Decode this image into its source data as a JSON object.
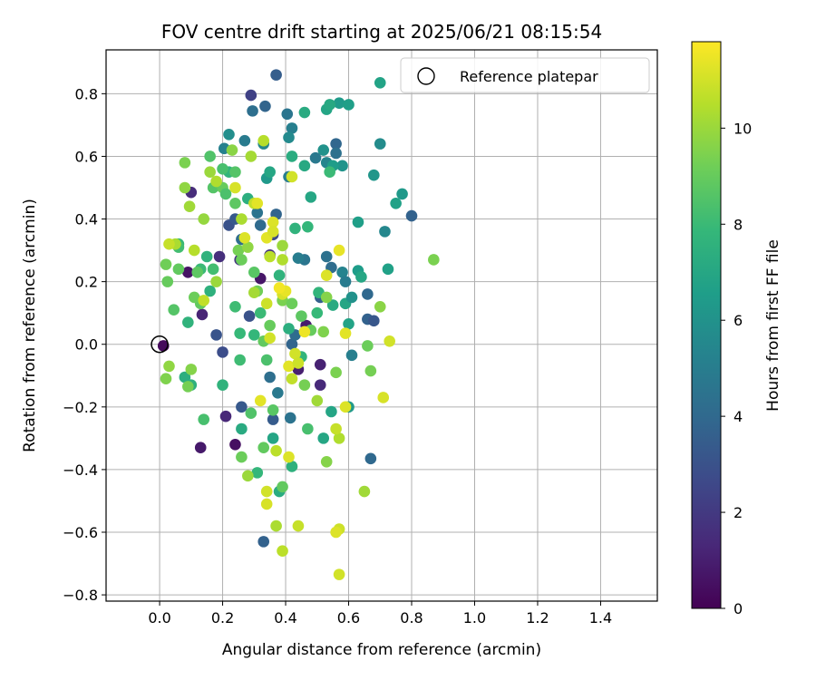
{
  "chart_data": {
    "type": "scatter",
    "title": "FOV centre drift starting at 2025/06/21 08:15:54",
    "xlabel": "Angular distance from reference (arcmin)",
    "ylabel": "Rotation from reference (arcmin)",
    "xlim": [
      -0.17,
      1.58
    ],
    "ylim": [
      -0.82,
      0.94
    ],
    "x_ticks": [
      0.0,
      0.2,
      0.4,
      0.6,
      0.8,
      1.0,
      1.2,
      1.4
    ],
    "x_tick_labels": [
      "0.0",
      "0.2",
      "0.4",
      "0.6",
      "0.8",
      "1.0",
      "1.2",
      "1.4"
    ],
    "y_ticks": [
      -0.8,
      -0.6,
      -0.4,
      -0.2,
      0.0,
      0.2,
      0.4,
      0.6,
      0.8
    ],
    "y_tick_labels": [
      "−0.8",
      "−0.6",
      "−0.4",
      "−0.2",
      "0.0",
      "0.2",
      "0.4",
      "0.6",
      "0.8"
    ],
    "grid": true,
    "legend_position": "top-right",
    "legend": [
      {
        "label": "Reference platepar",
        "marker": "open-circle"
      }
    ],
    "reference_point": {
      "x": 0.0,
      "y": 0.0
    },
    "colorbar": {
      "label": "Hours from first FF file",
      "colormap": "viridis",
      "range": [
        0,
        11.8
      ],
      "ticks": [
        0,
        2,
        4,
        6,
        8,
        10
      ],
      "tick_labels": [
        "0",
        "2",
        "4",
        "6",
        "8",
        "10"
      ]
    },
    "viridis_stops": [
      "#440154",
      "#482878",
      "#3e4989",
      "#31688e",
      "#26828e",
      "#1f9e89",
      "#35b779",
      "#6ece58",
      "#b5de2b",
      "#fde725"
    ],
    "points": [
      [
        0.012,
        -0.005,
        0.3
      ],
      [
        0.09,
        0.23,
        0.6
      ],
      [
        0.135,
        0.095,
        1.2
      ],
      [
        0.21,
        -0.23,
        1.3
      ],
      [
        0.13,
        -0.33,
        0.8
      ],
      [
        0.24,
        -0.32,
        0.5
      ],
      [
        0.51,
        -0.065,
        1.1
      ],
      [
        0.51,
        -0.13,
        1.4
      ],
      [
        0.465,
        0.06,
        0.9
      ],
      [
        0.32,
        0.21,
        0.7
      ],
      [
        0.19,
        0.28,
        1.6
      ],
      [
        0.1,
        0.485,
        1.5
      ],
      [
        0.29,
        0.795,
        2.3
      ],
      [
        0.255,
        0.27,
        1.9
      ],
      [
        0.44,
        -0.08,
        1.0
      ],
      [
        0.35,
        0.285,
        1.8
      ],
      [
        0.37,
        0.86,
        3.5
      ],
      [
        0.295,
        0.745,
        4.3
      ],
      [
        0.335,
        0.76,
        3.8
      ],
      [
        0.405,
        0.735,
        4.6
      ],
      [
        0.42,
        0.69,
        5.1
      ],
      [
        0.41,
        0.66,
        5.6
      ],
      [
        0.22,
        0.67,
        5.8
      ],
      [
        0.27,
        0.65,
        4.9
      ],
      [
        0.33,
        0.64,
        5.5
      ],
      [
        0.205,
        0.625,
        5.2
      ],
      [
        0.56,
        0.64,
        3.9
      ],
      [
        0.56,
        0.61,
        4.4
      ],
      [
        0.52,
        0.62,
        6.0
      ],
      [
        0.53,
        0.58,
        5.4
      ],
      [
        0.58,
        0.57,
        6.1
      ],
      [
        0.55,
        0.57,
        6.5
      ],
      [
        0.495,
        0.595,
        4.8
      ],
      [
        0.41,
        0.535,
        5.0
      ],
      [
        0.34,
        0.53,
        6.3
      ],
      [
        0.31,
        0.42,
        4.5
      ],
      [
        0.37,
        0.415,
        3.8
      ],
      [
        0.22,
        0.38,
        3.0
      ],
      [
        0.24,
        0.4,
        3.3
      ],
      [
        0.32,
        0.38,
        4.1
      ],
      [
        0.36,
        0.35,
        2.7
      ],
      [
        0.26,
        0.335,
        4.2
      ],
      [
        0.53,
        0.28,
        4.4
      ],
      [
        0.46,
        0.27,
        4.6
      ],
      [
        0.545,
        0.245,
        4.2
      ],
      [
        0.58,
        0.23,
        5.3
      ],
      [
        0.44,
        0.275,
        5.0
      ],
      [
        0.59,
        0.2,
        4.9
      ],
      [
        0.66,
        0.16,
        4.0
      ],
      [
        0.51,
        0.15,
        3.6
      ],
      [
        0.8,
        0.41,
        3.7
      ],
      [
        0.715,
        0.36,
        5.5
      ],
      [
        0.66,
        0.08,
        3.7
      ],
      [
        0.68,
        0.075,
        3.2
      ],
      [
        0.61,
        -0.035,
        5.1
      ],
      [
        0.42,
        0.0,
        3.8
      ],
      [
        0.43,
        0.03,
        4.2
      ],
      [
        0.35,
        -0.105,
        4.3
      ],
      [
        0.375,
        -0.155,
        4.8
      ],
      [
        0.415,
        -0.235,
        4.5
      ],
      [
        0.36,
        -0.24,
        3.4
      ],
      [
        0.67,
        -0.365,
        4.0
      ],
      [
        0.33,
        -0.63,
        3.7
      ],
      [
        0.2,
        -0.025,
        2.8
      ],
      [
        0.18,
        0.03,
        3.1
      ],
      [
        0.26,
        -0.2,
        3.3
      ],
      [
        0.285,
        0.09,
        3.0
      ],
      [
        0.75,
        0.45,
        6.7
      ],
      [
        0.77,
        0.48,
        6.3
      ],
      [
        0.7,
        0.64,
        5.7
      ],
      [
        0.68,
        0.54,
        6.2
      ],
      [
        0.57,
        0.77,
        6.4
      ],
      [
        0.53,
        0.75,
        6.9
      ],
      [
        0.54,
        0.765,
        7.1
      ],
      [
        0.7,
        0.835,
        6.8
      ],
      [
        0.6,
        0.765,
        6.6
      ],
      [
        0.46,
        0.74,
        7.2
      ],
      [
        0.63,
        0.39,
        6.6
      ],
      [
        0.63,
        0.235,
        6.5
      ],
      [
        0.64,
        0.215,
        7.0
      ],
      [
        0.725,
        0.24,
        6.7
      ],
      [
        0.59,
        0.13,
        6.9
      ],
      [
        0.55,
        0.125,
        7.2
      ],
      [
        0.61,
        0.15,
        6.0
      ],
      [
        0.6,
        0.065,
        6.8
      ],
      [
        0.545,
        -0.215,
        6.9
      ],
      [
        0.6,
        -0.2,
        6.3
      ],
      [
        0.52,
        -0.3,
        7.0
      ],
      [
        0.36,
        -0.3,
        6.9
      ],
      [
        0.38,
        -0.47,
        7.3
      ],
      [
        0.42,
        -0.39,
        7.5
      ],
      [
        0.31,
        -0.41,
        7.8
      ],
      [
        0.26,
        -0.27,
        7.2
      ],
      [
        0.2,
        -0.13,
        7.6
      ],
      [
        0.1,
        -0.13,
        7.5
      ],
      [
        0.08,
        -0.105,
        7.4
      ],
      [
        0.09,
        0.07,
        7.6
      ],
      [
        0.06,
        0.32,
        7.9
      ],
      [
        0.22,
        0.55,
        7.7
      ],
      [
        0.28,
        0.465,
        7.4
      ],
      [
        0.35,
        0.55,
        7.0
      ],
      [
        0.43,
        0.37,
        7.6
      ],
      [
        0.47,
        0.375,
        7.8
      ],
      [
        0.46,
        0.57,
        7.1
      ],
      [
        0.48,
        0.47,
        7.0
      ],
      [
        0.38,
        0.22,
        7.6
      ],
      [
        0.32,
        0.1,
        8.0
      ],
      [
        0.255,
        0.035,
        7.9
      ],
      [
        0.16,
        0.17,
        7.5
      ],
      [
        0.13,
        0.24,
        8.0
      ],
      [
        0.15,
        0.28,
        7.6
      ],
      [
        0.17,
        0.24,
        8.2
      ],
      [
        0.24,
        0.12,
        8.1
      ],
      [
        0.3,
        0.03,
        7.8
      ],
      [
        0.34,
        -0.05,
        8.4
      ],
      [
        0.42,
        0.6,
        7.3
      ],
      [
        0.54,
        0.55,
        8.0
      ],
      [
        0.505,
        0.165,
        7.7
      ],
      [
        0.41,
        0.05,
        7.4
      ],
      [
        0.5,
        0.1,
        7.9
      ],
      [
        0.47,
        -0.27,
        8.3
      ],
      [
        0.29,
        -0.22,
        8.5
      ],
      [
        0.36,
        -0.21,
        8.7
      ],
      [
        0.45,
        -0.04,
        7.7
      ],
      [
        0.255,
        -0.05,
        8.1
      ],
      [
        0.14,
        -0.24,
        8.3
      ],
      [
        0.13,
        0.13,
        8.9
      ],
      [
        0.17,
        0.5,
        8.6
      ],
      [
        0.2,
        0.5,
        9.0
      ],
      [
        0.21,
        0.48,
        8.4
      ],
      [
        0.24,
        0.45,
        8.8
      ],
      [
        0.2,
        0.56,
        8.3
      ],
      [
        0.24,
        0.55,
        8.6
      ],
      [
        0.16,
        0.6,
        8.5
      ],
      [
        0.06,
        0.31,
        8.2
      ],
      [
        0.12,
        0.23,
        8.8
      ],
      [
        0.11,
        0.15,
        9.1
      ],
      [
        0.06,
        0.24,
        8.9
      ],
      [
        0.025,
        0.2,
        9.0
      ],
      [
        0.02,
        0.255,
        9.2
      ],
      [
        0.045,
        0.11,
        8.6
      ],
      [
        0.25,
        0.3,
        9.3
      ],
      [
        0.26,
        0.27,
        9.1
      ],
      [
        0.3,
        0.23,
        8.7
      ],
      [
        0.31,
        0.17,
        9.2
      ],
      [
        0.33,
        0.01,
        8.9
      ],
      [
        0.35,
        0.06,
        9.0
      ],
      [
        0.39,
        0.14,
        9.4
      ],
      [
        0.42,
        0.13,
        9.1
      ],
      [
        0.45,
        0.09,
        8.8
      ],
      [
        0.48,
        0.045,
        9.0
      ],
      [
        0.52,
        0.04,
        9.5
      ],
      [
        0.53,
        0.15,
        9.6
      ],
      [
        0.66,
        -0.005,
        9.1
      ],
      [
        0.67,
        -0.085,
        9.3
      ],
      [
        0.7,
        0.12,
        9.7
      ],
      [
        0.87,
        0.27,
        9.4
      ],
      [
        0.56,
        -0.09,
        9.4
      ],
      [
        0.46,
        -0.13,
        9.3
      ],
      [
        0.33,
        -0.33,
        8.9
      ],
      [
        0.26,
        -0.36,
        9.1
      ],
      [
        0.39,
        -0.455,
        8.9
      ],
      [
        0.53,
        -0.375,
        9.6
      ],
      [
        0.65,
        -0.47,
        10.1
      ],
      [
        0.09,
        -0.135,
        9.3
      ],
      [
        0.1,
        -0.08,
        9.6
      ],
      [
        0.03,
        -0.07,
        9.8
      ],
      [
        0.02,
        -0.11,
        9.5
      ],
      [
        0.08,
        0.5,
        9.8
      ],
      [
        0.095,
        0.44,
        10.1
      ],
      [
        0.08,
        0.58,
        9.4
      ],
      [
        0.16,
        0.55,
        10.0
      ],
      [
        0.14,
        0.4,
        9.9
      ],
      [
        0.23,
        0.62,
        9.7
      ],
      [
        0.29,
        0.6,
        10.2
      ],
      [
        0.33,
        0.65,
        10.5
      ],
      [
        0.18,
        0.52,
        10.4
      ],
      [
        0.3,
        0.45,
        10.7
      ],
      [
        0.39,
        0.315,
        10.0
      ],
      [
        0.28,
        0.31,
        9.8
      ],
      [
        0.26,
        0.4,
        10.3
      ],
      [
        0.35,
        0.28,
        10.6
      ],
      [
        0.39,
        0.27,
        10.4
      ],
      [
        0.18,
        0.2,
        10.0
      ],
      [
        0.05,
        0.32,
        10.3
      ],
      [
        0.03,
        0.32,
        10.8
      ],
      [
        0.11,
        0.3,
        10.5
      ],
      [
        0.14,
        0.14,
        10.7
      ],
      [
        0.3,
        0.165,
        10.2
      ],
      [
        0.34,
        0.13,
        10.9
      ],
      [
        0.36,
        0.39,
        11.2
      ],
      [
        0.5,
        -0.18,
        10.1
      ],
      [
        0.37,
        -0.34,
        10.6
      ],
      [
        0.57,
        -0.3,
        10.4
      ],
      [
        0.28,
        -0.42,
        10.0
      ],
      [
        0.44,
        -0.58,
        10.8
      ],
      [
        0.37,
        -0.58,
        10.3
      ],
      [
        0.57,
        -0.59,
        10.9
      ],
      [
        0.56,
        -0.6,
        11.2
      ],
      [
        0.39,
        -0.66,
        10.6
      ],
      [
        0.57,
        -0.735,
        11.0
      ],
      [
        0.59,
        -0.2,
        11.2
      ],
      [
        0.71,
        -0.17,
        11.1
      ],
      [
        0.56,
        -0.27,
        10.8
      ],
      [
        0.41,
        -0.07,
        11.3
      ],
      [
        0.43,
        -0.03,
        11.0
      ],
      [
        0.44,
        -0.06,
        10.9
      ],
      [
        0.59,
        0.035,
        11.3
      ],
      [
        0.42,
        -0.11,
        10.7
      ],
      [
        0.34,
        -0.47,
        11.0
      ],
      [
        0.34,
        -0.51,
        11.1
      ],
      [
        0.41,
        -0.36,
        11.2
      ],
      [
        0.35,
        0.02,
        11.0
      ],
      [
        0.34,
        0.34,
        11.3
      ],
      [
        0.36,
        0.36,
        11.1
      ],
      [
        0.39,
        0.16,
        11.1
      ],
      [
        0.4,
        0.17,
        11.4
      ],
      [
        0.57,
        0.3,
        11.4
      ],
      [
        0.73,
        0.01,
        11.0
      ],
      [
        0.31,
        0.45,
        11.3
      ],
      [
        0.53,
        0.22,
        11.2
      ],
      [
        0.42,
        0.535,
        11.0
      ],
      [
        0.24,
        0.5,
        11.1
      ],
      [
        0.38,
        0.18,
        11.6
      ],
      [
        0.27,
        0.34,
        11.2
      ],
      [
        0.32,
        -0.18,
        11.3
      ],
      [
        0.46,
        0.04,
        11.5
      ]
    ]
  }
}
